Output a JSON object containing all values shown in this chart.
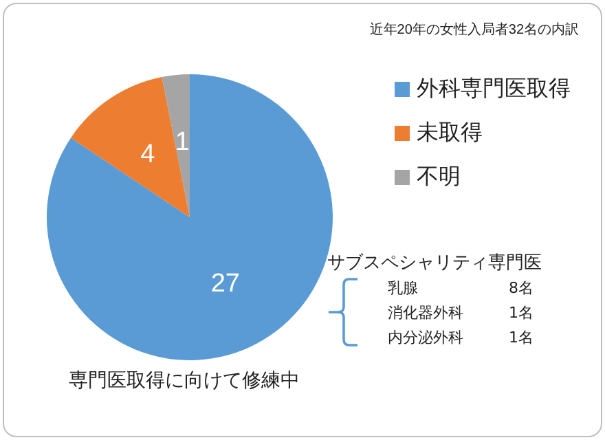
{
  "chart_data": {
    "type": "pie",
    "title": "近年20年の女性入局者32名の内訳",
    "categories": [
      "外科専門医取得",
      "未取得",
      "不明"
    ],
    "values": [
      27,
      4,
      1
    ],
    "colors": [
      "#5b9bd5",
      "#ed7d31",
      "#a5a5a5"
    ],
    "data_labels": true,
    "legend": "right",
    "annotations": [
      "サブスペシャリティ専門医",
      "乳腺",
      "8名",
      "消化器外科",
      "1名",
      "内分泌外科",
      "1名",
      "専門医取得に向けて修練中"
    ]
  }
}
